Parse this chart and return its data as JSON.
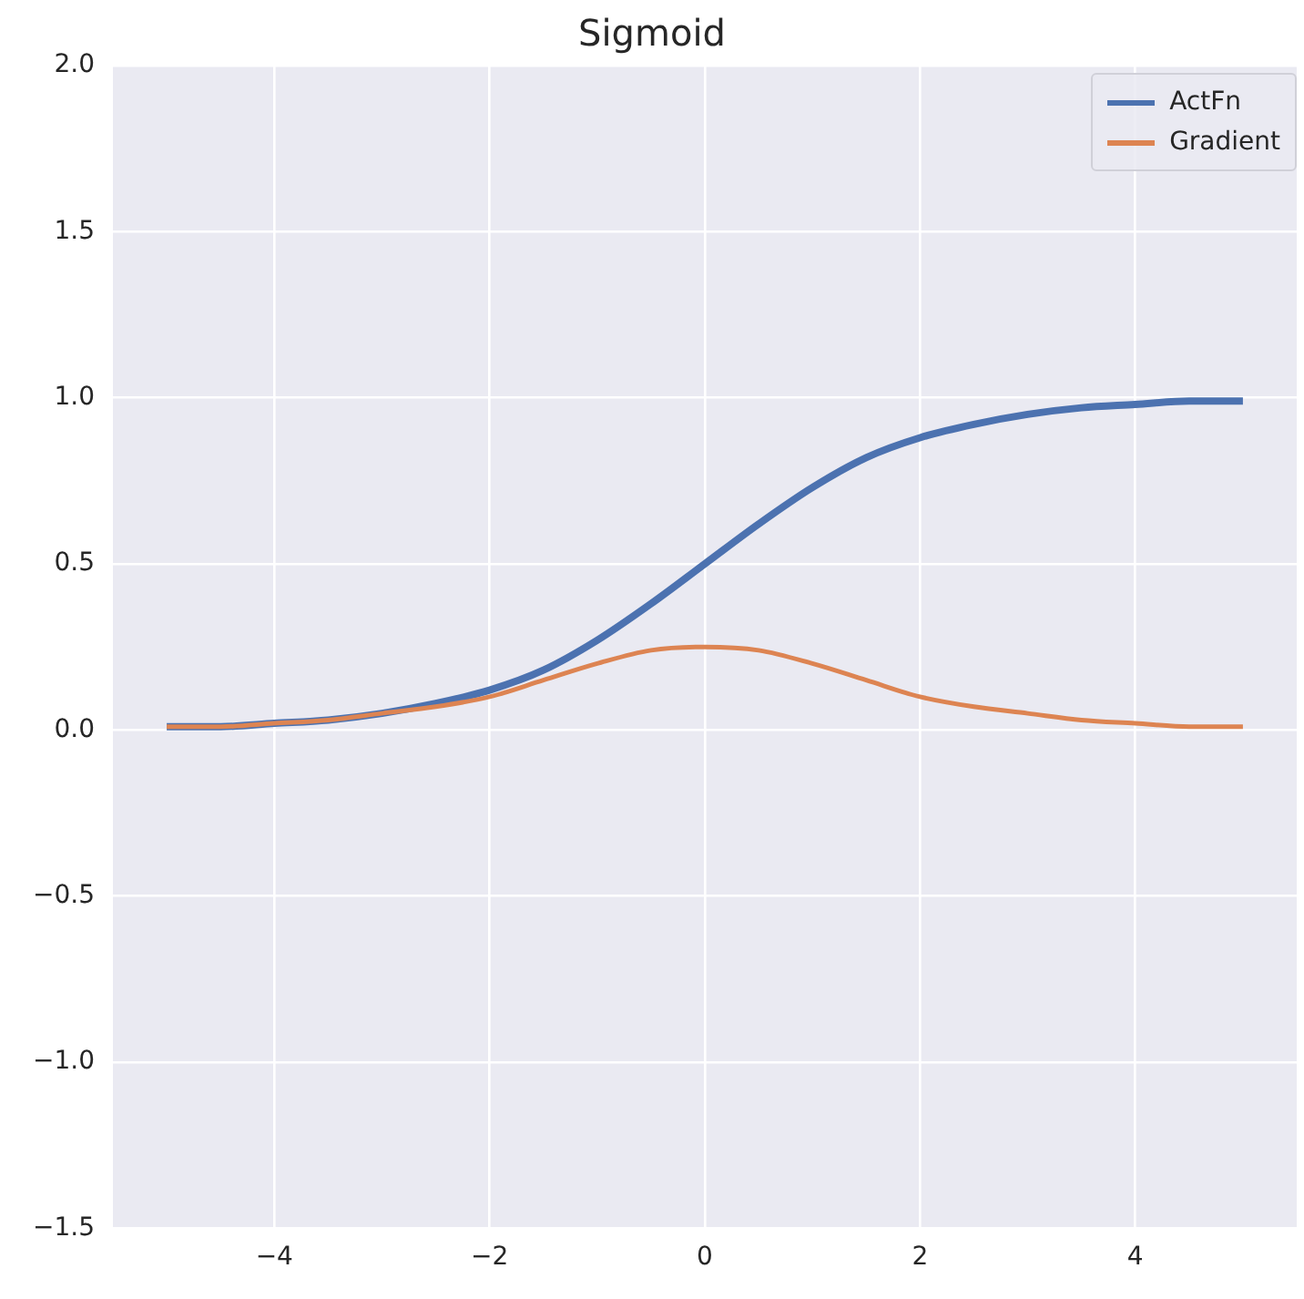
{
  "chart_data": {
    "type": "line",
    "title": "Sigmoid",
    "x": [
      -5,
      -4.5,
      -4,
      -3.5,
      -3,
      -2.5,
      -2,
      -1.5,
      -1,
      -0.5,
      0,
      0.5,
      1,
      1.5,
      2,
      2.5,
      3,
      3.5,
      4,
      4.5,
      5
    ],
    "series": [
      {
        "name": "ActFn",
        "color": "#4c72b0",
        "values": [
          0.01,
          0.01,
          0.02,
          0.03,
          0.05,
          0.08,
          0.12,
          0.18,
          0.27,
          0.38,
          0.5,
          0.62,
          0.73,
          0.82,
          0.88,
          0.92,
          0.95,
          0.97,
          0.98,
          0.99,
          0.99
        ]
      },
      {
        "name": "Gradient",
        "color": "#dd8452",
        "values": [
          0.01,
          0.01,
          0.02,
          0.03,
          0.05,
          0.07,
          0.1,
          0.15,
          0.2,
          0.24,
          0.25,
          0.24,
          0.2,
          0.15,
          0.1,
          0.07,
          0.05,
          0.03,
          0.02,
          0.01,
          0.01
        ]
      }
    ],
    "xlim": [
      -5.5,
      5.5
    ],
    "xticks": [
      {
        "value": -4,
        "label": "−4"
      },
      {
        "value": -2,
        "label": "−2"
      },
      0,
      2,
      4
    ],
    "ylim": [
      -1.5,
      2
    ],
    "yticks": [
      {
        "value": -1.5,
        "label": "−1.5"
      },
      {
        "value": -1,
        "label": "−1.0"
      },
      {
        "value": -0.5,
        "label": "−0.5"
      },
      {
        "value": 0,
        "label": "0.0"
      },
      {
        "value": 0.5,
        "label": "0.5"
      },
      {
        "value": 1,
        "label": "1.0"
      },
      {
        "value": 1.5,
        "label": "1.5"
      },
      {
        "value": 2,
        "label": "2.0"
      }
    ],
    "grid": true,
    "legend": "top right",
    "marker": "none",
    "line_style": "solid"
  }
}
